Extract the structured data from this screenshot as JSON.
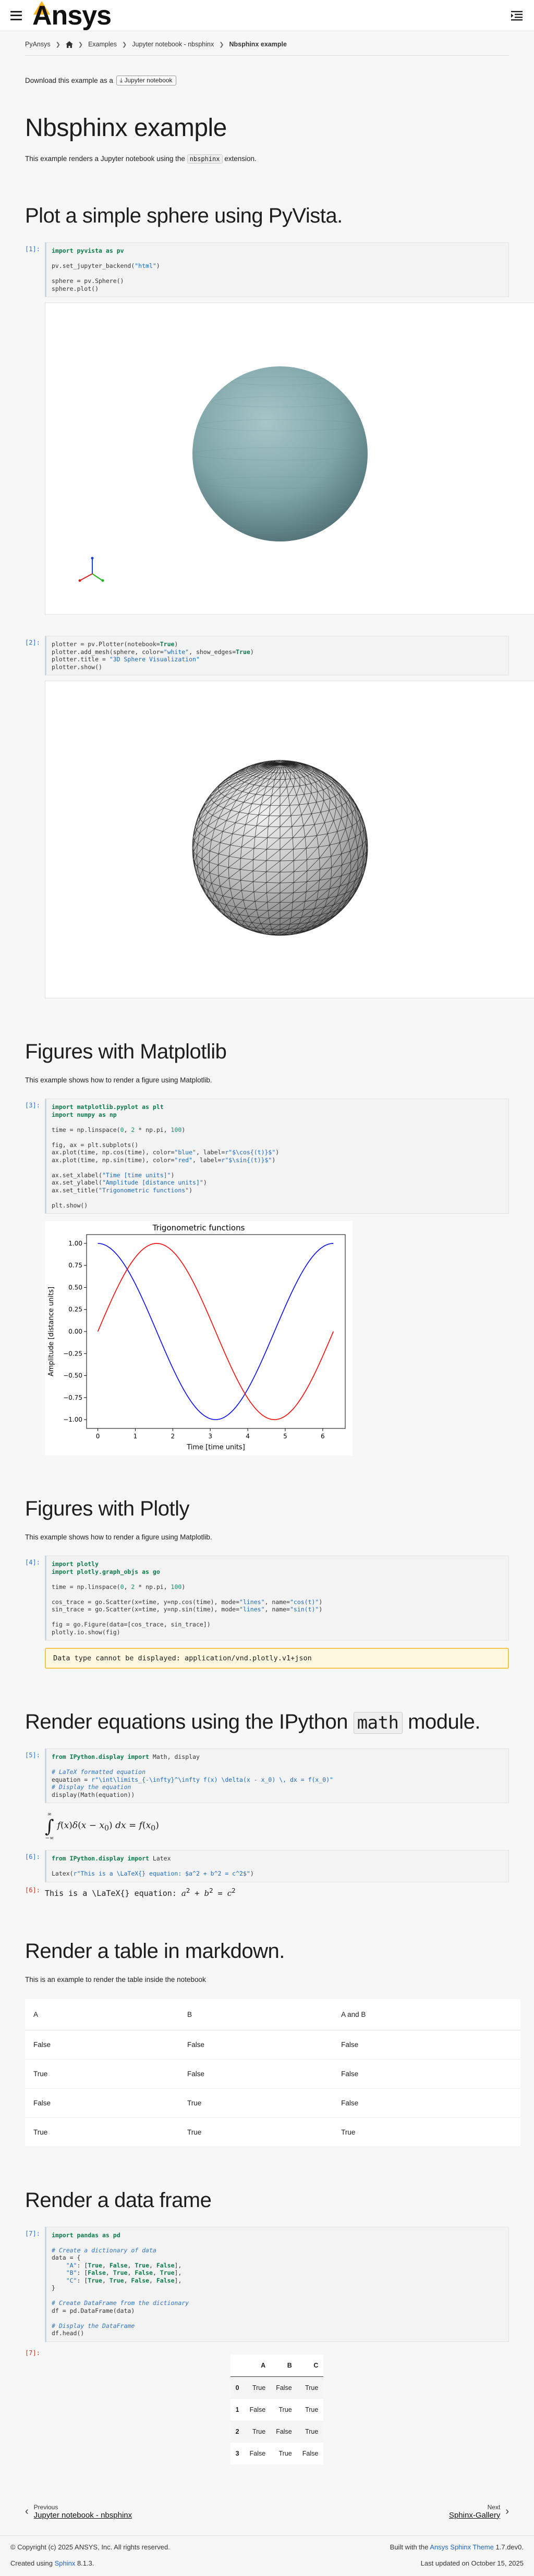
{
  "header": {
    "logo": "Ansys"
  },
  "breadcrumb": {
    "root": "PyAnsys",
    "examples": "Examples",
    "parent": "Jupyter notebook - nbsphinx",
    "current": "Nbsphinx example"
  },
  "download": {
    "text": "Download this example as a",
    "tag": "Jupyter notebook"
  },
  "page": {
    "title": "Nbsphinx example",
    "intro_before": "This example renders a Jupyter notebook using the",
    "intro_code": "nbsphinx",
    "intro_after": "extension."
  },
  "sections": {
    "pyvista": {
      "title": "Plot a simple sphere using PyVista."
    },
    "mpl": {
      "title": "Figures with Matplotlib",
      "desc": "This example shows how to render a figure using Matplotlib."
    },
    "plotly": {
      "title": "Figures with Plotly",
      "desc": "This example shows how to render a figure using Matplotlib."
    },
    "eq": {
      "title_before": "Render equations using the IPython",
      "title_code": "math",
      "title_after": "module."
    },
    "table": {
      "title": "Render a table in markdown.",
      "desc": "This is an example to render the table inside the notebook"
    },
    "df": {
      "title": "Render a data frame"
    }
  },
  "prompts": {
    "c1": "[1]:",
    "c2": "[2]:",
    "c3": "[3]:",
    "c4": "[4]:",
    "c5": "[5]:",
    "c6": "[6]:",
    "o6": "[6]:",
    "c7": "[7]:",
    "o7": "[7]:"
  },
  "plotly_warning": "Data type cannot be displayed: application/vnd.plotly.v1+json",
  "latex_output": "This is a \\LaTeX{} equation:",
  "md_table": {
    "headers": [
      "A",
      "B",
      "A and B"
    ],
    "rows": [
      [
        "False",
        "False",
        "False"
      ],
      [
        "True",
        "False",
        "False"
      ],
      [
        "False",
        "True",
        "False"
      ],
      [
        "True",
        "True",
        "True"
      ]
    ]
  },
  "df_table": {
    "headers": [
      "",
      "A",
      "B",
      "C"
    ],
    "rows": [
      [
        "0",
        "True",
        "False",
        "True"
      ],
      [
        "1",
        "False",
        "True",
        "True"
      ],
      [
        "2",
        "True",
        "False",
        "True"
      ],
      [
        "3",
        "False",
        "True",
        "False"
      ]
    ]
  },
  "chart_data": {
    "type": "line",
    "title": "Trigonometric functions",
    "xlabel": "Time [time units]",
    "ylabel": "Amplitude [distance units]",
    "xlim": [
      -0.3,
      6.6
    ],
    "ylim": [
      -1.1,
      1.1
    ],
    "xticks": [
      0,
      1,
      2,
      3,
      4,
      5,
      6
    ],
    "yticks": [
      1.0,
      0.75,
      0.5,
      0.25,
      0.0,
      -0.25,
      -0.5,
      -0.75,
      -1.0
    ],
    "ytick_labels": [
      "1.00",
      "0.75",
      "0.50",
      "0.25",
      "0.00",
      "−0.25",
      "−0.50",
      "−0.75",
      "−1.00"
    ],
    "series": [
      {
        "function": "cos",
        "color": "#0000ff"
      },
      {
        "function": "sin",
        "color": "#ff0000"
      }
    ]
  },
  "nav": {
    "prev_small": "Previous",
    "prev_big": "Jupyter notebook - nbsphinx",
    "next_small": "Next",
    "next_big": "Sphinx-Gallery"
  },
  "footer": {
    "copyright": "© Copyright (c) 2025 ANSYS, Inc. All rights reserved.",
    "created_before": "Created using",
    "sphinx": "Sphinx",
    "sphinx_ver": "8.1.3.",
    "built_before": "Built with the",
    "theme": "Ansys Sphinx Theme",
    "theme_ver": "1.7.dev0.",
    "updated": "Last updated on October 15, 2025"
  }
}
